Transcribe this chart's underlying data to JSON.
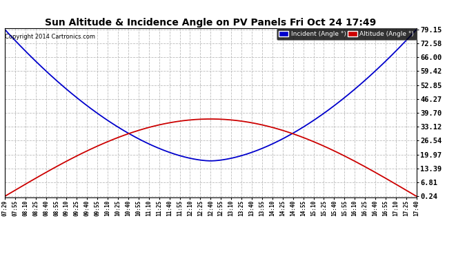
{
  "title": "Sun Altitude & Incidence Angle on PV Panels Fri Oct 24 17:49",
  "copyright": "Copyright 2014 Cartronics.com",
  "bg_color": "#ffffff",
  "plot_bg_color": "#ffffff",
  "grid_color": "#bbbbbb",
  "line_incident_color": "#0000cc",
  "line_altitude_color": "#cc0000",
  "legend_incident_label": "Incident (Angle °)",
  "legend_altitude_label": "Altitude (Angle °)",
  "legend_incident_bg": "#0000cc",
  "legend_altitude_bg": "#cc0000",
  "yticks": [
    0.24,
    6.81,
    13.39,
    19.97,
    26.54,
    33.12,
    39.7,
    46.27,
    52.85,
    59.42,
    66.0,
    72.58,
    79.15
  ],
  "ymin": 0.24,
  "ymax": 79.15,
  "incident_min": 17.0,
  "incident_max": 79.15,
  "altitude_max": 36.8,
  "altitude_min": 0.24,
  "xtick_labels": [
    "07:29",
    "07:55",
    "08:10",
    "08:25",
    "08:40",
    "08:55",
    "09:10",
    "09:25",
    "09:40",
    "09:55",
    "10:10",
    "10:25",
    "10:40",
    "10:55",
    "11:10",
    "11:25",
    "11:40",
    "11:55",
    "12:10",
    "12:25",
    "12:40",
    "12:55",
    "13:10",
    "13:25",
    "13:40",
    "13:55",
    "14:10",
    "14:25",
    "14:40",
    "14:55",
    "15:10",
    "15:25",
    "15:40",
    "15:55",
    "16:10",
    "16:25",
    "16:40",
    "16:55",
    "17:10",
    "17:25",
    "17:40"
  ]
}
